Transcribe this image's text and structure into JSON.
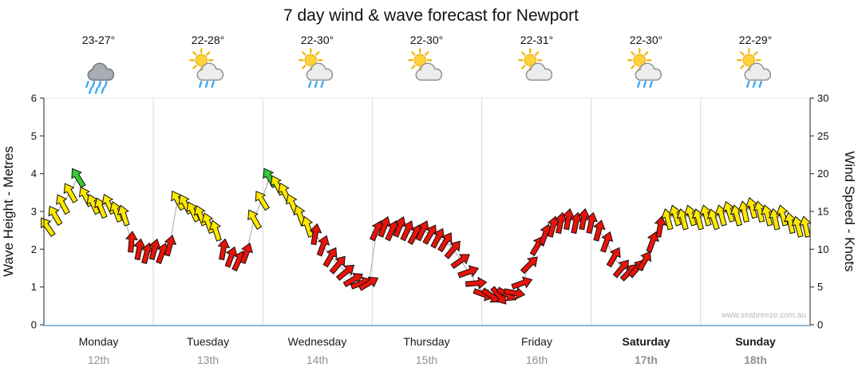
{
  "title": "7 day wind & wave forecast for Newport",
  "watermark": "www.seabreeze.com.au",
  "days": [
    {
      "name": "Monday",
      "date": "12th",
      "temp": "23-27°",
      "icon": "rain",
      "weekend": false
    },
    {
      "name": "Tuesday",
      "date": "13th",
      "temp": "22-28°",
      "icon": "showers",
      "weekend": false
    },
    {
      "name": "Wednesday",
      "date": "14th",
      "temp": "22-30°",
      "icon": "showers",
      "weekend": false
    },
    {
      "name": "Thursday",
      "date": "15th",
      "temp": "22-30°",
      "icon": "partly-cloudy",
      "weekend": false
    },
    {
      "name": "Friday",
      "date": "16th",
      "temp": "22-31°",
      "icon": "partly-cloudy",
      "weekend": false
    },
    {
      "name": "Saturday",
      "date": "17th",
      "temp": "22-30°",
      "icon": "showers",
      "weekend": true
    },
    {
      "name": "Sunday",
      "date": "18th",
      "temp": "22-29°",
      "icon": "showers",
      "weekend": true
    }
  ],
  "chart_data": {
    "type": "scatter",
    "marker": "wind-arrow",
    "title": "7 day wind & wave forecast for Newport",
    "categories": [
      "Monday 12th",
      "Tuesday 13th",
      "Wednesday 14th",
      "Thursday 15th",
      "Friday 16th",
      "Saturday 17th",
      "Sunday 18th"
    ],
    "left_axis": {
      "label": "Wave Height - Metres",
      "min": 0,
      "max": 6,
      "ticks": [
        0,
        1,
        2,
        3,
        4,
        5,
        6
      ]
    },
    "right_axis": {
      "label": "Wind Speed - Knots",
      "min": 0,
      "max": 30,
      "ticks": [
        0,
        5,
        10,
        15,
        20,
        25,
        30
      ]
    },
    "x_axis": {
      "unit": "days",
      "min": 0,
      "max": 7
    },
    "colors": {
      "y": "#ffe800",
      "r": "#e81309",
      "g": "#33cc33"
    },
    "line_color": "#b3b3b3",
    "point_format": [
      "day_offset",
      "wind_speed_knots",
      "color_code",
      "direction_deg"
    ],
    "points": [
      [
        0.03,
        13,
        "y",
        -35
      ],
      [
        0.1,
        14.5,
        "y",
        -30
      ],
      [
        0.17,
        16,
        "y",
        -28
      ],
      [
        0.24,
        17.5,
        "y",
        -30
      ],
      [
        0.31,
        19.5,
        "g",
        -32
      ],
      [
        0.38,
        17,
        "y",
        -28
      ],
      [
        0.45,
        16,
        "y",
        -25
      ],
      [
        0.52,
        15.5,
        "y",
        -22
      ],
      [
        0.59,
        16,
        "y",
        -25
      ],
      [
        0.66,
        15,
        "y",
        -20
      ],
      [
        0.73,
        14.5,
        "y",
        -18
      ],
      [
        0.8,
        11,
        "r",
        5
      ],
      [
        0.87,
        10,
        "r",
        10
      ],
      [
        0.94,
        9.5,
        "r",
        15
      ],
      [
        1.01,
        10,
        "r",
        15
      ],
      [
        1.08,
        9.5,
        "r",
        20
      ],
      [
        1.15,
        10.5,
        "r",
        15
      ],
      [
        1.22,
        16.5,
        "y",
        -30
      ],
      [
        1.29,
        16,
        "y",
        -28
      ],
      [
        1.36,
        15,
        "y",
        -25
      ],
      [
        1.43,
        14.5,
        "y",
        -22
      ],
      [
        1.5,
        13.5,
        "y",
        -20
      ],
      [
        1.57,
        12.5,
        "y",
        -18
      ],
      [
        1.64,
        10,
        "r",
        10
      ],
      [
        1.71,
        9,
        "r",
        20
      ],
      [
        1.78,
        8.5,
        "r",
        25
      ],
      [
        1.85,
        9.5,
        "r",
        20
      ],
      [
        1.92,
        14,
        "y",
        -30
      ],
      [
        1.99,
        16.5,
        "y",
        -32
      ],
      [
        2.06,
        19.5,
        "g",
        -30
      ],
      [
        2.13,
        18.5,
        "y",
        -28
      ],
      [
        2.2,
        17.5,
        "y",
        -26
      ],
      [
        2.27,
        16,
        "y",
        -24
      ],
      [
        2.34,
        14.5,
        "y",
        -20
      ],
      [
        2.41,
        13,
        "y",
        -18
      ],
      [
        2.48,
        12,
        "r",
        10
      ],
      [
        2.55,
        10.5,
        "r",
        20
      ],
      [
        2.62,
        9,
        "r",
        30
      ],
      [
        2.69,
        8,
        "r",
        40
      ],
      [
        2.76,
        7,
        "r",
        50
      ],
      [
        2.83,
        6,
        "r",
        60
      ],
      [
        2.9,
        5.5,
        "r",
        70
      ],
      [
        2.97,
        5.5,
        "r",
        60
      ],
      [
        3.04,
        12.5,
        "r",
        25
      ],
      [
        3.11,
        13,
        "r",
        20
      ],
      [
        3.18,
        12.5,
        "r",
        25
      ],
      [
        3.25,
        13,
        "r",
        22
      ],
      [
        3.32,
        12.5,
        "r",
        25
      ],
      [
        3.39,
        12,
        "r",
        28
      ],
      [
        3.46,
        12.5,
        "r",
        25
      ],
      [
        3.53,
        12,
        "r",
        30
      ],
      [
        3.6,
        11.5,
        "r",
        28
      ],
      [
        3.67,
        11,
        "r",
        32
      ],
      [
        3.74,
        10,
        "r",
        40
      ],
      [
        3.81,
        8.5,
        "r",
        55
      ],
      [
        3.88,
        7,
        "r",
        70
      ],
      [
        3.95,
        5.5,
        "r",
        85
      ],
      [
        4.02,
        4,
        "r",
        110
      ],
      [
        4.09,
        3.8,
        "r",
        125
      ],
      [
        4.16,
        3.8,
        "r",
        140
      ],
      [
        4.23,
        4,
        "r",
        120
      ],
      [
        4.3,
        4.2,
        "r",
        100
      ],
      [
        4.37,
        5.5,
        "r",
        70
      ],
      [
        4.44,
        8,
        "r",
        45
      ],
      [
        4.51,
        10.5,
        "r",
        30
      ],
      [
        4.58,
        12,
        "r",
        20
      ],
      [
        4.65,
        13,
        "r",
        15
      ],
      [
        4.72,
        13.5,
        "r",
        12
      ],
      [
        4.79,
        14,
        "r",
        10
      ],
      [
        4.86,
        13.5,
        "r",
        12
      ],
      [
        4.93,
        14,
        "r",
        10
      ],
      [
        5.0,
        13.5,
        "r",
        12
      ],
      [
        5.07,
        12.5,
        "r",
        15
      ],
      [
        5.14,
        11,
        "r",
        20
      ],
      [
        5.21,
        9,
        "r",
        30
      ],
      [
        5.28,
        7.5,
        "r",
        40
      ],
      [
        5.35,
        7,
        "r",
        45
      ],
      [
        5.42,
        7.5,
        "r",
        40
      ],
      [
        5.49,
        8.5,
        "r",
        30
      ],
      [
        5.56,
        11,
        "r",
        20
      ],
      [
        5.63,
        13,
        "r",
        10
      ],
      [
        5.7,
        14,
        "y",
        -15
      ],
      [
        5.77,
        14.5,
        "y",
        -18
      ],
      [
        5.84,
        14,
        "y",
        -15
      ],
      [
        5.91,
        14.5,
        "y",
        -18
      ],
      [
        5.98,
        14,
        "y",
        -15
      ],
      [
        6.05,
        14.5,
        "y",
        -15
      ],
      [
        6.12,
        14,
        "y",
        -18
      ],
      [
        6.19,
        14.5,
        "y",
        -15
      ],
      [
        6.26,
        15,
        "y",
        -18
      ],
      [
        6.33,
        14.5,
        "y",
        -15
      ],
      [
        6.4,
        15,
        "y",
        -12
      ],
      [
        6.47,
        15.5,
        "y",
        -15
      ],
      [
        6.54,
        15,
        "y",
        -12
      ],
      [
        6.61,
        14.5,
        "y",
        -15
      ],
      [
        6.68,
        14,
        "y",
        -12
      ],
      [
        6.75,
        14.5,
        "y",
        -15
      ],
      [
        6.82,
        13.5,
        "y",
        -12
      ],
      [
        6.89,
        13,
        "y",
        -15
      ],
      [
        6.96,
        13,
        "y",
        -12
      ]
    ]
  }
}
